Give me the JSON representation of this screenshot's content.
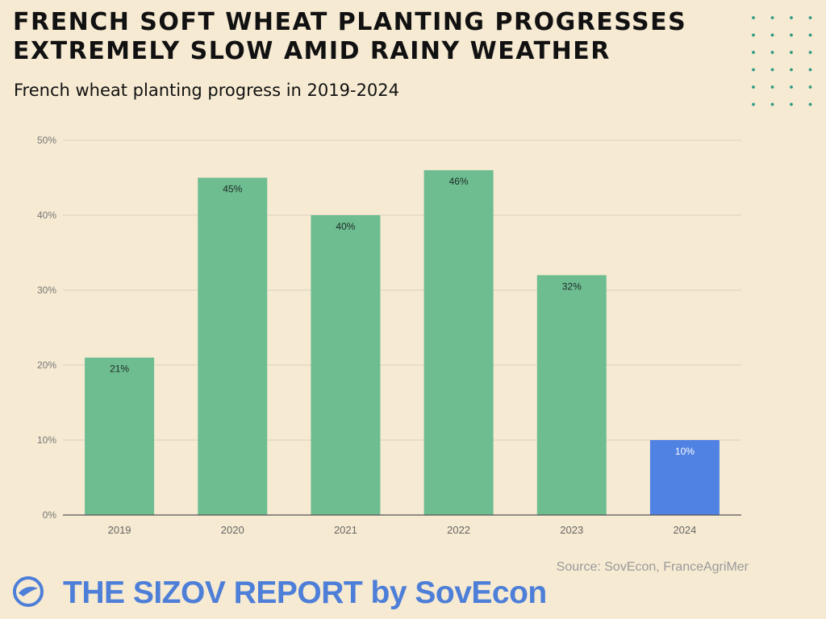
{
  "header": {
    "title_line1": "FRENCH SOFT WHEAT PLANTING PROGRESSES",
    "title_line2": "EXTREMELY SLOW AMID RAINY WEATHER",
    "subtitle": "French wheat planting progress in 2019-2024"
  },
  "colors": {
    "background": "#f6ead2",
    "bar": "#6dbd91",
    "bar_highlight": "#4f82e3",
    "dots": "#2e9a84",
    "brand": "#4d7ed8",
    "grid": "#d9d0be",
    "axis": "#555555"
  },
  "chart_data": {
    "type": "bar",
    "title": "French wheat planting progress in 2019-2024",
    "xlabel": "",
    "ylabel": "",
    "categories": [
      "2019",
      "2020",
      "2021",
      "2022",
      "2023",
      "2024"
    ],
    "values": [
      21,
      45,
      40,
      46,
      32,
      10
    ],
    "data_labels": [
      "21%",
      "45%",
      "40%",
      "46%",
      "32%",
      "10%"
    ],
    "highlight_index": 5,
    "ylim": [
      0,
      50
    ],
    "yticks": [
      0,
      10,
      20,
      30,
      40,
      50
    ],
    "ytick_labels": [
      "0%",
      "10%",
      "20%",
      "30%",
      "40%",
      "50%"
    ],
    "grid": true,
    "legend": "none"
  },
  "footer": {
    "source": "Source: SovEcon, FranceAgriMer",
    "brand": "THE SIZOV REPORT by SovEcon",
    "brand_icon": "sovecon-logo-icon"
  }
}
